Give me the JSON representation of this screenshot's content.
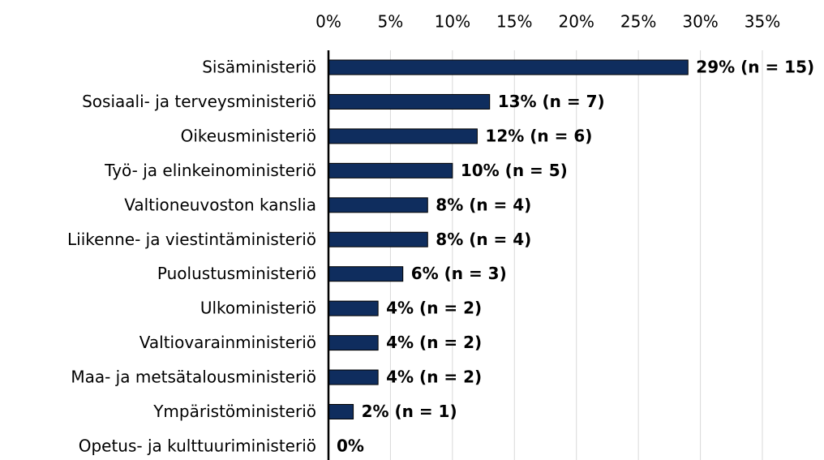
{
  "chart_data": {
    "type": "hbar",
    "categories": [
      "Sisäministeriö",
      "Sosiaali- ja terveysministeriö",
      "Oikeusministeriö",
      "Työ- ja elinkeinoministeriö",
      "Valtioneuvoston kanslia",
      "Liikenne- ja viestintäministeriö",
      "Puolustusministeriö",
      "Ulkoministeriö",
      "Valtiovarainministeriö",
      "Maa- ja metsätalousministeriö",
      "Ympäristöministeriö",
      "Opetus- ja kulttuuriministeriö"
    ],
    "values": [
      29,
      13,
      12,
      10,
      8,
      8,
      6,
      4,
      4,
      4,
      2,
      0
    ],
    "value_labels": [
      "29% (n = 15)",
      "13% (n = 7)",
      "12% (n = 6)",
      "10% (n = 5)",
      "8% (n = 4)",
      "8% (n = 4)",
      "6% (n = 3)",
      "4% (n = 2)",
      "4% (n = 2)",
      "4% (n = 2)",
      "2% (n = 1)",
      "0%"
    ],
    "color": "#0f2d5e",
    "xlim": [
      0,
      35
    ],
    "xticks": [
      {
        "value": 0,
        "label": "0%"
      },
      {
        "value": 5,
        "label": "5%"
      },
      {
        "value": 10,
        "label": "10%"
      },
      {
        "value": 15,
        "label": "15%"
      },
      {
        "value": 20,
        "label": "20%"
      },
      {
        "value": 25,
        "label": "25%"
      },
      {
        "value": 30,
        "label": "30%"
      },
      {
        "value": 35,
        "label": "35%"
      }
    ],
    "grid": true
  }
}
